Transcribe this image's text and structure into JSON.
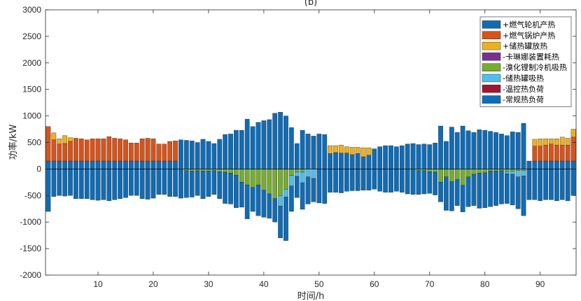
{
  "chart_data": {
    "type": "bar",
    "stacked": true,
    "title": "(b)",
    "xlabel": "时间/h",
    "ylabel": "功率/kW",
    "xlim": [
      0.5,
      96.5
    ],
    "ylim": [
      -2000,
      3000
    ],
    "x_ticks": [
      10,
      20,
      30,
      40,
      50,
      60,
      70,
      80,
      90
    ],
    "y_ticks": [
      -2000,
      -1500,
      -1000,
      -500,
      0,
      500,
      1000,
      1500,
      2000,
      2500,
      3000
    ],
    "x_tick_labels": [
      "10",
      "20",
      "30",
      "40",
      "50",
      "60",
      "70",
      "80",
      "90"
    ],
    "y_tick_labels": [
      "-2000",
      "-1500",
      "-1000",
      "-500",
      "0",
      "500",
      "1000",
      "1500",
      "2000",
      "2500",
      "3000"
    ],
    "grid": false,
    "legend_position": "top-right",
    "x": [
      1,
      2,
      3,
      4,
      5,
      6,
      7,
      8,
      9,
      10,
      11,
      12,
      13,
      14,
      15,
      16,
      17,
      18,
      19,
      20,
      21,
      22,
      23,
      24,
      25,
      26,
      27,
      28,
      29,
      30,
      31,
      32,
      33,
      34,
      35,
      36,
      37,
      38,
      39,
      40,
      41,
      42,
      43,
      44,
      45,
      46,
      47,
      48,
      49,
      50,
      51,
      52,
      53,
      54,
      55,
      56,
      57,
      58,
      59,
      60,
      61,
      62,
      63,
      64,
      65,
      66,
      67,
      68,
      69,
      70,
      71,
      72,
      73,
      74,
      75,
      76,
      77,
      78,
      79,
      80,
      81,
      82,
      83,
      84,
      85,
      86,
      87,
      88,
      89,
      90,
      91,
      92,
      93,
      94,
      95,
      96
    ],
    "series": [
      {
        "name": "+燃气轮机产热",
        "color": "#0F6CB6",
        "values": [
          150,
          150,
          150,
          150,
          150,
          150,
          150,
          150,
          150,
          150,
          150,
          150,
          150,
          150,
          150,
          150,
          150,
          150,
          150,
          150,
          150,
          150,
          150,
          150,
          550,
          540,
          530,
          500,
          560,
          520,
          480,
          560,
          650,
          660,
          730,
          730,
          940,
          800,
          880,
          910,
          930,
          1050,
          1070,
          1000,
          780,
          480,
          730,
          660,
          620,
          660,
          650,
          290,
          310,
          300,
          300,
          270,
          290,
          230,
          260,
          380,
          420,
          440,
          440,
          420,
          440,
          470,
          480,
          460,
          470,
          460,
          490,
          810,
          520,
          790,
          690,
          810,
          720,
          690,
          740,
          730,
          710,
          690,
          660,
          630,
          700,
          690,
          860,
          150,
          150,
          150,
          150,
          150,
          150,
          150,
          150,
          150
        ]
      },
      {
        "name": "+燃气锅炉产热",
        "color": "#D95319",
        "values": [
          650,
          400,
          320,
          330,
          370,
          430,
          420,
          400,
          420,
          420,
          420,
          460,
          430,
          420,
          400,
          340,
          340,
          420,
          430,
          420,
          320,
          320,
          370,
          380,
          0,
          0,
          0,
          0,
          0,
          0,
          0,
          0,
          0,
          0,
          0,
          0,
          0,
          0,
          0,
          0,
          0,
          0,
          0,
          0,
          0,
          0,
          0,
          0,
          0,
          0,
          0,
          0,
          0,
          0,
          0,
          0,
          0,
          0,
          0,
          0,
          0,
          0,
          0,
          0,
          0,
          0,
          0,
          0,
          0,
          0,
          0,
          0,
          0,
          0,
          0,
          0,
          0,
          0,
          0,
          0,
          0,
          0,
          0,
          0,
          0,
          0,
          0,
          0,
          280,
          280,
          300,
          320,
          300,
          300,
          300,
          450
        ]
      },
      {
        "name": "+储热罐放热",
        "color": "#EDB120",
        "values": [
          0,
          130,
          100,
          150,
          70,
          0,
          0,
          0,
          0,
          0,
          0,
          0,
          0,
          0,
          0,
          0,
          0,
          0,
          0,
          0,
          0,
          0,
          0,
          0,
          0,
          0,
          0,
          0,
          0,
          0,
          0,
          0,
          0,
          0,
          0,
          0,
          0,
          0,
          0,
          0,
          0,
          0,
          0,
          0,
          0,
          0,
          0,
          0,
          0,
          0,
          0,
          150,
          130,
          150,
          120,
          140,
          120,
          170,
          140,
          0,
          0,
          0,
          0,
          0,
          0,
          0,
          0,
          0,
          0,
          0,
          0,
          0,
          0,
          0,
          0,
          0,
          0,
          0,
          0,
          0,
          0,
          0,
          0,
          0,
          0,
          0,
          0,
          0,
          130,
          140,
          120,
          100,
          120,
          150,
          130,
          150
        ]
      },
      {
        "name": "-卡琳娜装置耗热",
        "color": "#7E2F8E",
        "values": [
          0,
          0,
          0,
          0,
          0,
          0,
          0,
          0,
          0,
          0,
          0,
          0,
          0,
          0,
          0,
          0,
          0,
          0,
          0,
          0,
          0,
          0,
          0,
          0,
          0,
          0,
          0,
          0,
          0,
          0,
          0,
          0,
          0,
          0,
          0,
          0,
          0,
          0,
          0,
          0,
          0,
          0,
          0,
          0,
          0,
          0,
          0,
          0,
          0,
          0,
          0,
          0,
          0,
          0,
          0,
          0,
          0,
          0,
          0,
          0,
          0,
          0,
          0,
          0,
          0,
          0,
          0,
          0,
          0,
          0,
          0,
          0,
          0,
          0,
          0,
          0,
          0,
          0,
          0,
          0,
          0,
          0,
          0,
          0,
          0,
          0,
          0,
          0,
          0,
          0,
          0,
          0,
          0,
          0,
          0,
          0
        ]
      },
      {
        "name": "-溴化锂制冷机吸热",
        "color": "#77AC30",
        "values": [
          0,
          0,
          0,
          0,
          0,
          0,
          0,
          0,
          0,
          0,
          0,
          0,
          0,
          0,
          0,
          0,
          0,
          0,
          0,
          0,
          0,
          0,
          0,
          0,
          -20,
          -30,
          -40,
          -30,
          -40,
          -40,
          -30,
          -50,
          -60,
          -80,
          -120,
          -250,
          -300,
          -350,
          -300,
          -400,
          -470,
          -560,
          -500,
          -380,
          -120,
          -60,
          -60,
          0,
          0,
          0,
          0,
          0,
          0,
          0,
          0,
          0,
          0,
          0,
          0,
          0,
          0,
          0,
          0,
          0,
          0,
          0,
          -20,
          -30,
          -30,
          -50,
          -60,
          -250,
          -150,
          -240,
          -200,
          -310,
          -150,
          -100,
          -80,
          -70,
          -40,
          -40,
          -30,
          -50,
          -40,
          -30,
          -30,
          0,
          0,
          0,
          0,
          0,
          0,
          0,
          0,
          0
        ]
      },
      {
        "name": "-储热罐吸热",
        "color": "#4DBEEE",
        "values": [
          0,
          0,
          0,
          0,
          0,
          0,
          0,
          0,
          0,
          0,
          0,
          0,
          0,
          0,
          0,
          0,
          0,
          0,
          0,
          0,
          0,
          0,
          0,
          0,
          0,
          0,
          0,
          0,
          0,
          0,
          0,
          0,
          0,
          0,
          0,
          0,
          0,
          0,
          0,
          0,
          0,
          0,
          -200,
          -150,
          -200,
          -80,
          -200,
          -150,
          -180,
          0,
          0,
          0,
          0,
          0,
          0,
          0,
          0,
          0,
          0,
          0,
          0,
          0,
          0,
          0,
          0,
          0,
          0,
          0,
          0,
          0,
          0,
          0,
          0,
          0,
          0,
          0,
          0,
          0,
          0,
          0,
          0,
          0,
          0,
          -40,
          -60,
          -120,
          -100,
          0,
          0,
          0,
          0,
          0,
          0,
          0,
          0,
          0
        ]
      },
      {
        "name": "-温控热负荷",
        "color": "#A2142F",
        "values": [
          0,
          0,
          0,
          0,
          0,
          0,
          0,
          0,
          0,
          0,
          0,
          0,
          0,
          0,
          0,
          0,
          0,
          0,
          0,
          0,
          0,
          0,
          0,
          0,
          0,
          0,
          0,
          0,
          0,
          0,
          0,
          0,
          0,
          0,
          0,
          0,
          0,
          0,
          0,
          0,
          0,
          0,
          0,
          0,
          0,
          0,
          0,
          0,
          0,
          0,
          0,
          0,
          0,
          0,
          0,
          0,
          0,
          0,
          0,
          0,
          0,
          0,
          0,
          0,
          0,
          0,
          0,
          0,
          0,
          0,
          0,
          0,
          0,
          0,
          0,
          0,
          0,
          0,
          0,
          0,
          0,
          0,
          0,
          0,
          0,
          0,
          0,
          0,
          0,
          0,
          0,
          0,
          0,
          0,
          0,
          0
        ]
      },
      {
        "name": "-常规热负荷",
        "color": "#0F6CB6",
        "values": [
          -800,
          -520,
          -500,
          -510,
          -500,
          -560,
          -560,
          -560,
          -580,
          -590,
          -580,
          -600,
          -580,
          -560,
          -540,
          -500,
          -500,
          -560,
          -570,
          -550,
          -480,
          -480,
          -520,
          -520,
          -530,
          -510,
          -490,
          -470,
          -520,
          -480,
          -450,
          -510,
          -590,
          -580,
          -610,
          -470,
          -640,
          -450,
          -580,
          -510,
          -460,
          -440,
          -600,
          -820,
          -480,
          -400,
          -500,
          -510,
          -440,
          -640,
          -650,
          -440,
          -440,
          -450,
          -420,
          -410,
          -410,
          -400,
          -400,
          -380,
          -420,
          -440,
          -440,
          -420,
          -440,
          -470,
          -460,
          -450,
          -440,
          -410,
          -430,
          -370,
          -630,
          -550,
          -490,
          -500,
          -560,
          -590,
          -660,
          -660,
          -670,
          -650,
          -630,
          -560,
          -580,
          -600,
          -750,
          -580,
          -580,
          -600,
          -580,
          -580,
          -600,
          -580,
          -600,
          -500
        ]
      }
    ]
  }
}
